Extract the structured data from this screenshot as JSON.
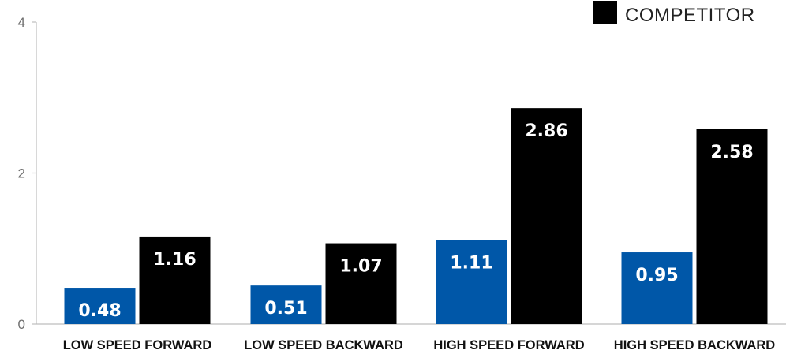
{
  "chart_data": {
    "type": "bar",
    "categories": [
      "LOW SPEED FORWARD",
      "LOW SPEED BACKWARD",
      "HIGH SPEED FORWARD",
      "HIGH SPEED BACKWARD"
    ],
    "series": [
      {
        "values": [
          0.48,
          0.51,
          1.11,
          0.95
        ],
        "color": "#0057a8"
      },
      {
        "name": "COMPETITOR",
        "values": [
          1.16,
          1.07,
          2.86,
          2.58
        ],
        "color": "#000000"
      }
    ],
    "ylim": [
      0,
      4
    ],
    "yticks": [
      "0",
      "2",
      "4"
    ],
    "data_labels": [
      [
        "0.48",
        "0.51",
        "1.11",
        "0.95"
      ],
      [
        "1.16",
        "1.07",
        "2.86",
        "2.58"
      ]
    ],
    "legend": {
      "position": "top-right",
      "entries": [
        "COMPETITOR"
      ]
    },
    "grid": false
  }
}
